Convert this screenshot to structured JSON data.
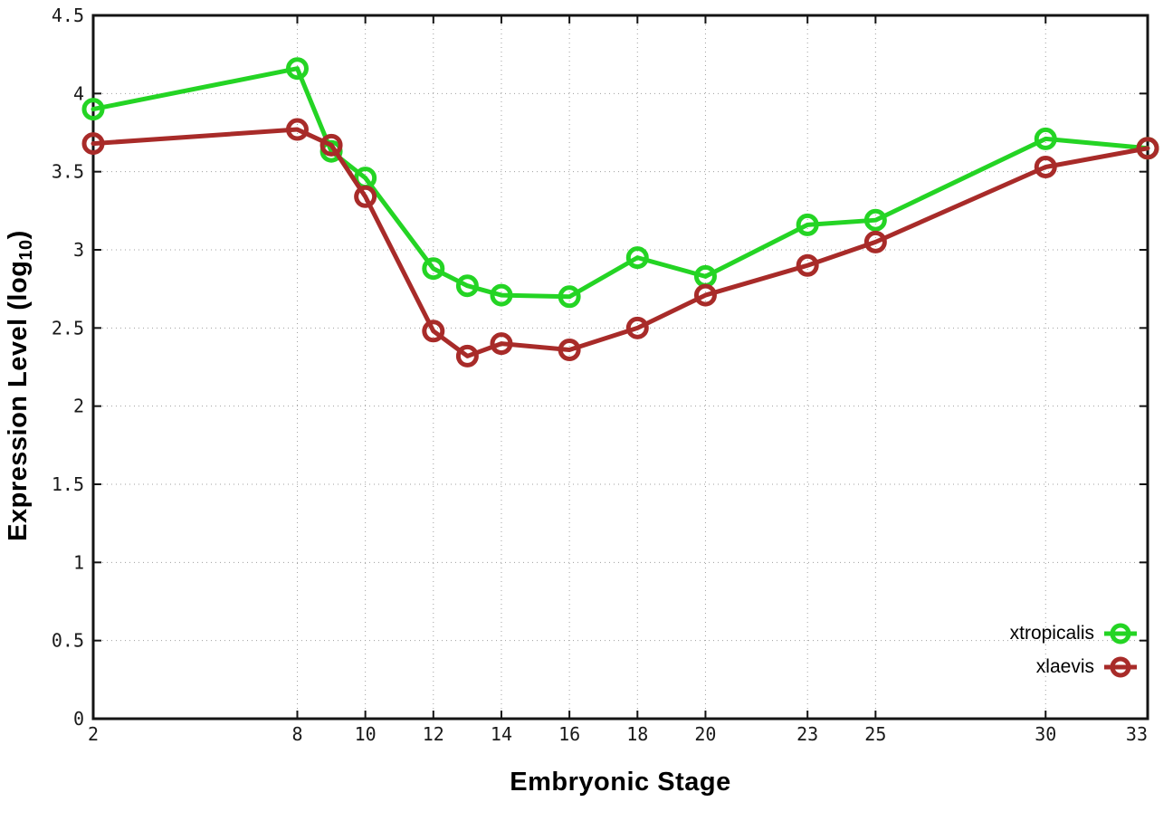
{
  "chart_data": {
    "type": "line",
    "title": "",
    "xlabel": "Embryonic Stage",
    "ylabel": {
      "prefix": "Expression Level (log",
      "sub": "10",
      "suffix": ")"
    },
    "xlim": [
      2,
      33
    ],
    "ylim": [
      0,
      4.5
    ],
    "x_ticks": [
      2,
      8,
      10,
      12,
      14,
      16,
      18,
      20,
      23,
      25,
      30,
      33
    ],
    "y_ticks": [
      0,
      0.5,
      1,
      1.5,
      2,
      2.5,
      3,
      3.5,
      4,
      4.5
    ],
    "y_tick_labels": [
      "0",
      "0.5",
      "1",
      "1.5",
      "2",
      "2.5",
      "3",
      "3.5",
      "4",
      "4.5"
    ],
    "grid": true,
    "legend_position": "inside-bottom-right",
    "x": [
      2,
      8,
      9,
      10,
      12,
      13,
      14,
      16,
      18,
      20,
      23,
      25,
      30,
      33
    ],
    "series": [
      {
        "name": "xtropicalis",
        "color": "#24d424",
        "marker": "open-circle",
        "values": [
          3.9,
          4.16,
          3.63,
          3.46,
          2.88,
          2.77,
          2.71,
          2.7,
          2.95,
          2.83,
          3.16,
          3.19,
          3.71,
          3.65
        ]
      },
      {
        "name": "xlaevis",
        "color": "#a82b29",
        "marker": "open-circle",
        "values": [
          3.68,
          3.77,
          3.67,
          3.34,
          2.48,
          2.32,
          2.4,
          2.36,
          2.5,
          2.71,
          2.9,
          3.05,
          3.53,
          3.65
        ]
      }
    ],
    "colors": {
      "background": "#ffffff",
      "border": "#141414",
      "grid": "#9f9f9f",
      "tick_text": "#1a1a1a"
    }
  }
}
